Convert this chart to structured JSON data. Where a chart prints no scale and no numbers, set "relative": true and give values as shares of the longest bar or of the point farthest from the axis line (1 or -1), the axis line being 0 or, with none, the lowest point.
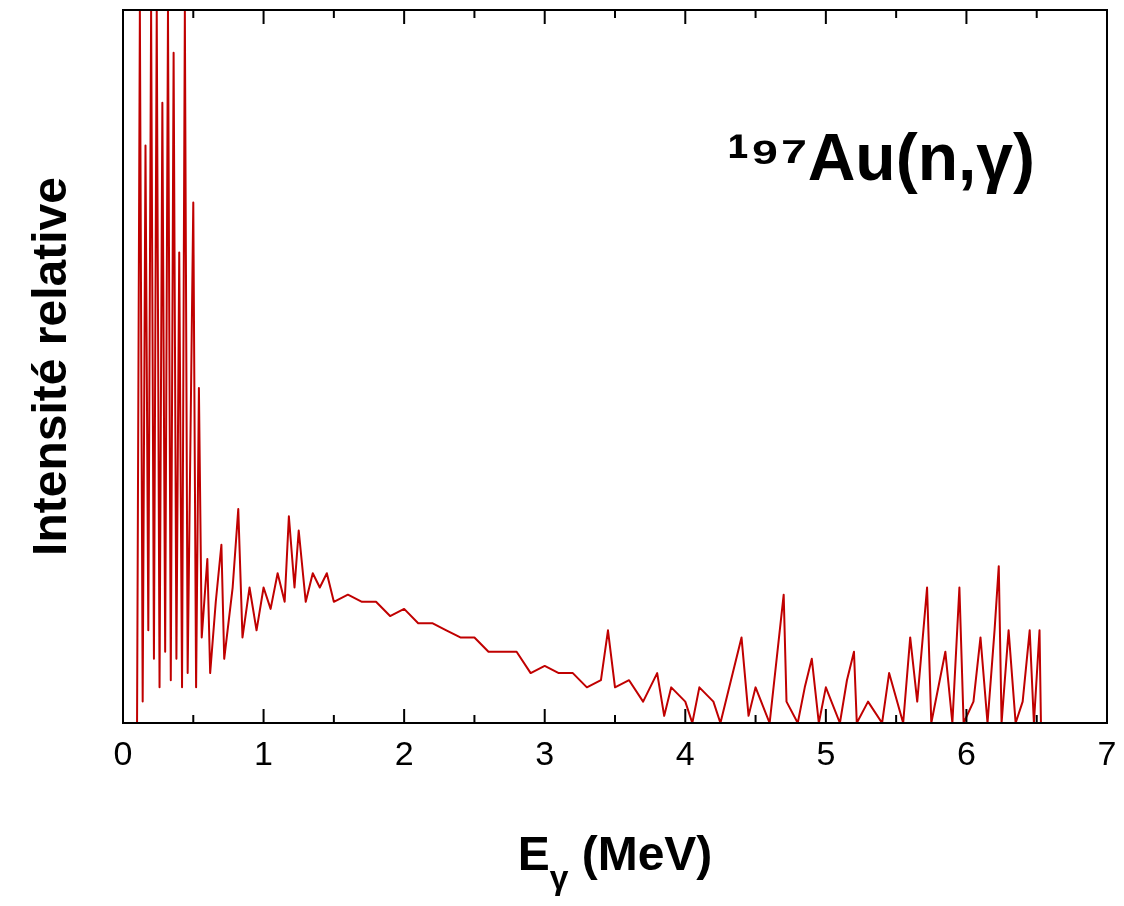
{
  "chart_data": {
    "type": "line",
    "title": "¹⁹⁷Au(n,γ)",
    "xlabel": "E$_{γ}$ (MeV)",
    "ylabel": "Intensité relative",
    "relative": true,
    "xlim": [
      0,
      7
    ],
    "xticks": [
      0,
      {
        "value": 0.5,
        "label": null
      },
      1,
      {
        "value": 1.5,
        "label": null
      },
      2,
      {
        "value": 2.5,
        "label": null
      },
      3,
      {
        "value": 3.5,
        "label": null
      },
      4,
      {
        "value": 4.5,
        "label": null
      },
      5,
      {
        "value": 5.5,
        "label": null
      },
      6,
      {
        "value": 6.5,
        "label": null
      },
      7
    ],
    "grid": false,
    "line_style": "solid",
    "series": [
      {
        "color": "#c00000",
        "x": [
          0.1,
          0.12,
          0.14,
          0.16,
          0.18,
          0.2,
          0.22,
          0.24,
          0.26,
          0.28,
          0.3,
          0.32,
          0.34,
          0.36,
          0.38,
          0.4,
          0.42,
          0.44,
          0.46,
          0.5,
          0.52,
          0.54,
          0.56,
          0.6,
          0.62,
          0.66,
          0.7,
          0.72,
          0.78,
          0.82,
          0.85,
          0.9,
          0.95,
          1.0,
          1.05,
          1.1,
          1.15,
          1.18,
          1.22,
          1.25,
          1.3,
          1.35,
          1.4,
          1.45,
          1.5,
          1.6,
          1.7,
          1.8,
          1.9,
          2.0,
          2.1,
          2.2,
          2.3,
          2.4,
          2.5,
          2.6,
          2.7,
          2.8,
          2.9,
          3.0,
          3.1,
          3.2,
          3.3,
          3.4,
          3.45,
          3.5,
          3.6,
          3.7,
          3.8,
          3.85,
          3.9,
          4.0,
          4.05,
          4.1,
          4.2,
          4.25,
          4.3,
          4.4,
          4.45,
          4.5,
          4.6,
          4.7,
          4.72,
          4.8,
          4.85,
          4.9,
          4.95,
          5.0,
          5.1,
          5.15,
          5.2,
          5.22,
          5.3,
          5.4,
          5.45,
          5.55,
          5.6,
          5.65,
          5.72,
          5.75,
          5.85,
          5.9,
          5.95,
          5.98,
          6.05,
          6.1,
          6.15,
          6.2,
          6.23,
          6.25,
          6.3,
          6.35,
          6.4,
          6.45,
          6.48,
          6.52,
          6.53
        ],
        "values": [
          0,
          1,
          0.03,
          0.81,
          0.13,
          1,
          0.09,
          1,
          0.05,
          0.87,
          0.1,
          1,
          0.06,
          0.94,
          0.09,
          0.66,
          0.05,
          1,
          0.07,
          0.73,
          0.05,
          0.47,
          0.12,
          0.23,
          0.07,
          0.17,
          0.25,
          0.09,
          0.19,
          0.3,
          0.12,
          0.19,
          0.13,
          0.19,
          0.16,
          0.21,
          0.17,
          0.29,
          0.19,
          0.27,
          0.17,
          0.21,
          0.19,
          0.21,
          0.17,
          0.18,
          0.17,
          0.17,
          0.15,
          0.16,
          0.14,
          0.14,
          0.13,
          0.12,
          0.12,
          0.1,
          0.1,
          0.1,
          0.07,
          0.08,
          0.07,
          0.07,
          0.05,
          0.06,
          0.13,
          0.05,
          0.06,
          0.03,
          0.07,
          0.01,
          0.05,
          0.03,
          0.0,
          0.05,
          0.03,
          0,
          0.04,
          0.12,
          0.01,
          0.05,
          0.0,
          0.18,
          0.03,
          0,
          0.05,
          0.09,
          0.0,
          0.05,
          0,
          0.06,
          0.1,
          0,
          0.03,
          0,
          0.07,
          0,
          0.12,
          0.03,
          0.19,
          0,
          0.1,
          0,
          0.19,
          0.0,
          0.03,
          0.12,
          0,
          0.13,
          0.22,
          0,
          0.13,
          0,
          0.03,
          0.13,
          0,
          0.13,
          0
        ]
      }
    ]
  }
}
